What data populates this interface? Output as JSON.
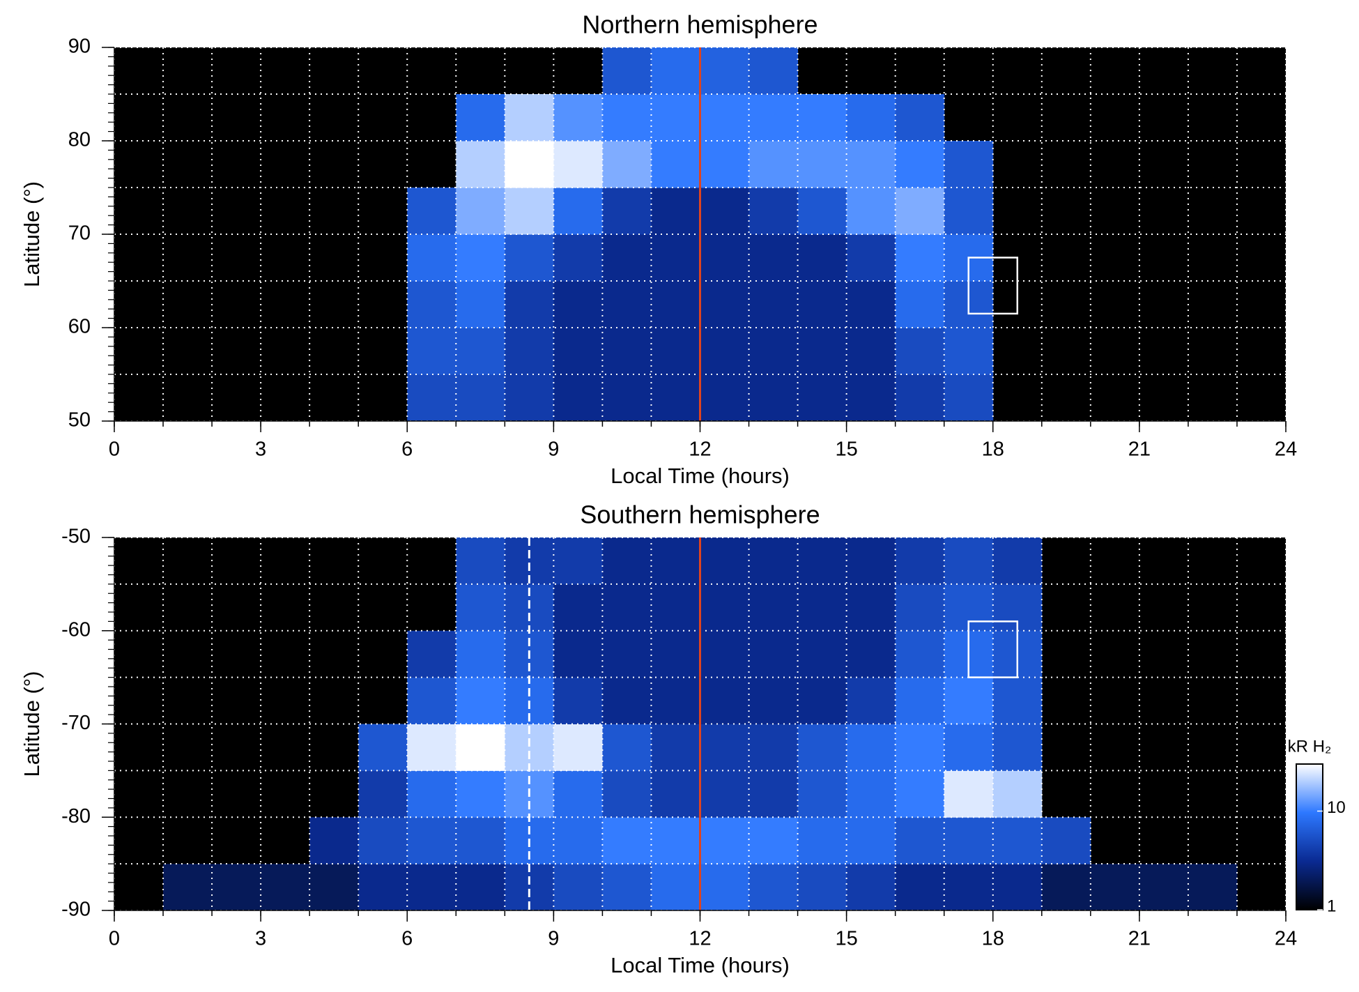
{
  "chart_data": [
    {
      "type": "heatmap",
      "title": "Northern hemisphere",
      "xlabel": "Local Time (hours)",
      "ylabel": "Latitude (°)",
      "xlim": [
        0,
        24
      ],
      "xticks": [
        0,
        3,
        6,
        9,
        12,
        15,
        18,
        21,
        24
      ],
      "ylim": [
        50,
        90
      ],
      "yticks": [
        50,
        60,
        70,
        80,
        90
      ],
      "xgrid": [
        0,
        1,
        2,
        3,
        4,
        5,
        6,
        7,
        8,
        9,
        10,
        11,
        12,
        13,
        14,
        15,
        16,
        17,
        18,
        19,
        20,
        21,
        22,
        23,
        24
      ],
      "ygrid": [
        50,
        55,
        60,
        65,
        70,
        75,
        80,
        85,
        90
      ],
      "yminor": [
        50,
        51,
        52,
        53,
        54,
        55,
        56,
        57,
        58,
        59,
        60,
        61,
        62,
        63,
        64,
        65,
        66,
        67,
        68,
        69,
        70,
        71,
        72,
        73,
        74,
        75,
        76,
        77,
        78,
        79,
        80,
        81,
        82,
        83,
        84,
        85,
        86,
        87,
        88,
        89,
        90
      ],
      "x_bins": [
        0,
        1,
        2,
        3,
        4,
        5,
        6,
        7,
        8,
        9,
        10,
        11,
        12,
        13,
        14,
        15,
        16,
        17,
        18,
        19,
        20,
        21,
        22,
        23,
        24
      ],
      "y_bins": [
        50,
        55,
        60,
        65,
        70,
        75,
        80,
        85,
        90
      ],
      "colormap": [
        "#000000",
        "#0a2a92",
        "#2d78ff",
        "#ffffff"
      ],
      "color_lim": [
        1,
        30
      ],
      "color_scale": "log",
      "z": [
        [
          null,
          null,
          null,
          null,
          null,
          null,
          5,
          5,
          4,
          3,
          3,
          3,
          3,
          3,
          3,
          3,
          4,
          5,
          null,
          null,
          null,
          null,
          null,
          null
        ],
        [
          null,
          null,
          null,
          null,
          null,
          null,
          6,
          6,
          4,
          3,
          3,
          3,
          3,
          3,
          3,
          3,
          5,
          6,
          null,
          null,
          null,
          null,
          null,
          null
        ],
        [
          null,
          null,
          null,
          null,
          null,
          null,
          6,
          8,
          4,
          3,
          3,
          3,
          3,
          3,
          3,
          3,
          8,
          6,
          null,
          null,
          null,
          null,
          null,
          null
        ],
        [
          null,
          null,
          null,
          null,
          null,
          null,
          8,
          10,
          6,
          4,
          3,
          3,
          3,
          3,
          3,
          4,
          10,
          8,
          null,
          null,
          null,
          null,
          null,
          null
        ],
        [
          null,
          null,
          null,
          null,
          null,
          null,
          6,
          15,
          20,
          8,
          4,
          3,
          3,
          4,
          6,
          12,
          15,
          6,
          null,
          null,
          null,
          null,
          null,
          null
        ],
        [
          null,
          null,
          null,
          null,
          null,
          null,
          null,
          20,
          30,
          25,
          15,
          10,
          10,
          12,
          12,
          12,
          10,
          6,
          null,
          null,
          null,
          null,
          null,
          null
        ],
        [
          null,
          null,
          null,
          null,
          null,
          null,
          null,
          8,
          20,
          12,
          10,
          10,
          10,
          10,
          10,
          8,
          6,
          null,
          null,
          null,
          null,
          null,
          null,
          null
        ],
        [
          null,
          null,
          null,
          null,
          null,
          null,
          null,
          null,
          null,
          null,
          6,
          8,
          7,
          6,
          null,
          null,
          null,
          null,
          null,
          null,
          null,
          null,
          null,
          null
        ]
      ],
      "vlines": [
        {
          "x": 12,
          "color": "#ffffff",
          "dash": true
        },
        {
          "x": 12,
          "color": "#e0441e",
          "dash": false
        }
      ],
      "boxes": [
        {
          "x": [
            17.5,
            18.5
          ],
          "y": [
            61.5,
            67.5
          ],
          "color": "#ffffff"
        }
      ]
    },
    {
      "type": "heatmap",
      "title": "Southern hemisphere",
      "xlabel": "Local Time (hours)",
      "ylabel": "Latitude (°)",
      "xlim": [
        0,
        24
      ],
      "xticks": [
        0,
        3,
        6,
        9,
        12,
        15,
        18,
        21,
        24
      ],
      "ylim": [
        -90,
        -50
      ],
      "yticks": [
        -90,
        -80,
        -70,
        -60,
        -50
      ],
      "xgrid": [
        0,
        1,
        2,
        3,
        4,
        5,
        6,
        7,
        8,
        9,
        10,
        11,
        12,
        13,
        14,
        15,
        16,
        17,
        18,
        19,
        20,
        21,
        22,
        23,
        24
      ],
      "ygrid": [
        -90,
        -85,
        -80,
        -75,
        -70,
        -65,
        -60,
        -55,
        -50
      ],
      "yminor": [
        -90,
        -89,
        -88,
        -87,
        -86,
        -85,
        -84,
        -83,
        -82,
        -81,
        -80,
        -79,
        -78,
        -77,
        -76,
        -75,
        -74,
        -73,
        -72,
        -71,
        -70,
        -69,
        -68,
        -67,
        -66,
        -65,
        -64,
        -63,
        -62,
        -61,
        -60,
        -59,
        -58,
        -57,
        -56,
        -55,
        -54,
        -53,
        -52,
        -51,
        -50
      ],
      "x_bins": [
        0,
        1,
        2,
        3,
        4,
        5,
        6,
        7,
        8,
        9,
        10,
        11,
        12,
        13,
        14,
        15,
        16,
        17,
        18,
        19,
        20,
        21,
        22,
        23,
        24
      ],
      "y_bins": [
        -90,
        -85,
        -80,
        -75,
        -70,
        -65,
        -60,
        -55,
        -50
      ],
      "colormap": [
        "#000000",
        "#0a2a92",
        "#2d78ff",
        "#ffffff"
      ],
      "color_lim": [
        1,
        30
      ],
      "color_scale": "log",
      "z": [
        [
          null,
          2,
          2,
          2,
          2,
          3,
          3,
          3,
          4,
          5,
          6,
          8,
          8,
          6,
          5,
          4,
          3,
          3,
          3,
          2,
          2,
          2,
          2,
          null
        ],
        [
          null,
          null,
          null,
          null,
          3,
          5,
          6,
          6,
          8,
          8,
          10,
          10,
          10,
          10,
          8,
          8,
          6,
          6,
          6,
          5,
          null,
          null,
          null,
          null
        ],
        [
          null,
          null,
          null,
          null,
          null,
          4,
          8,
          10,
          12,
          8,
          5,
          4,
          4,
          4,
          6,
          8,
          10,
          25,
          20,
          null,
          null,
          null,
          null,
          null
        ],
        [
          null,
          null,
          null,
          null,
          null,
          6,
          25,
          30,
          20,
          25,
          6,
          4,
          4,
          4,
          6,
          8,
          10,
          8,
          6,
          null,
          null,
          null,
          null,
          null
        ],
        [
          null,
          null,
          null,
          null,
          null,
          null,
          6,
          10,
          8,
          4,
          3,
          3,
          3,
          3,
          3,
          4,
          8,
          10,
          6,
          null,
          null,
          null,
          null,
          null
        ],
        [
          null,
          null,
          null,
          null,
          null,
          null,
          4,
          8,
          6,
          3,
          3,
          3,
          3,
          3,
          3,
          3,
          6,
          8,
          6,
          null,
          null,
          null,
          null,
          null
        ],
        [
          null,
          null,
          null,
          null,
          null,
          null,
          null,
          6,
          5,
          3,
          3,
          3,
          3,
          3,
          3,
          3,
          5,
          6,
          5,
          null,
          null,
          null,
          null,
          null
        ],
        [
          null,
          null,
          null,
          null,
          null,
          null,
          null,
          5,
          4,
          4,
          3,
          3,
          3,
          3,
          3,
          3,
          4,
          5,
          4,
          null,
          null,
          null,
          null,
          null
        ]
      ],
      "vlines": [
        {
          "x": 8.5,
          "color": "#ffffff",
          "dash": true
        },
        {
          "x": 12,
          "color": "#e0441e",
          "dash": false
        }
      ],
      "boxes": [
        {
          "x": [
            17.5,
            18.5
          ],
          "y": [
            -65,
            -59
          ],
          "color": "#ffffff"
        }
      ],
      "colorbar": {
        "label": "kR H₂",
        "lim": [
          1,
          30
        ],
        "ticks": [
          1,
          10
        ],
        "scale": "log"
      }
    }
  ]
}
